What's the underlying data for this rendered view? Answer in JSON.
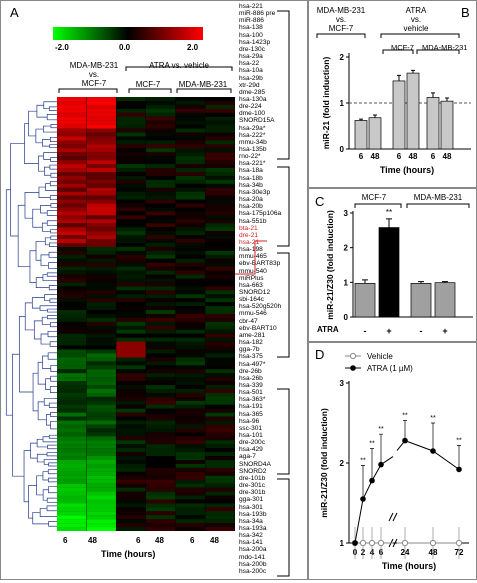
{
  "panelA": {
    "label": "A",
    "scale": {
      "min_label": "-2.0",
      "mid_label": "0.0",
      "max_label": "2.0",
      "min": -2.0,
      "max": 2.0
    },
    "group1": {
      "line1": "MDA-MB-231",
      "line2": "vs.",
      "line3": "MCF-7"
    },
    "group2": {
      "title": "ATRA vs. vehicle",
      "sub1": "MCF-7",
      "sub2": "MDA-MB-231"
    },
    "time_ticks": [
      "6",
      "48",
      "6",
      "48",
      "6",
      "48"
    ],
    "xlabel": "Time (hours)",
    "genes": [
      "hsa-221",
      "miR-886 pre",
      "miR-886",
      "hsa-138",
      "hsa-100",
      "hsa-1423p",
      "dre-130c",
      "hsa-29a",
      "hsa-22",
      "hsa-10a",
      "hsa-29b",
      "xtr-29d",
      "dme-285",
      "hsa-130a",
      "dre-224",
      "dme-100",
      "SNORD15A",
      "hsa-29a*",
      "hsa-222*",
      "mmu-34b",
      "hsa-135b",
      "rno-22*",
      "hsa-221*",
      "hsa-18a",
      "hsa-18b",
      "hsa-34b",
      "hsa-30e3p",
      "hsa-20a",
      "hsa-20b",
      "hsa-175p106a",
      "hsa-551b",
      "bta-21",
      "dre-21",
      "hsa-21",
      "hsa-198",
      "mmu-465",
      "ebv-BART83p",
      "mmu-540",
      "miRPlus",
      "hsa-663",
      "SNORD12",
      "sbi-164c",
      "hsa-520g520h",
      "mmu-546",
      "cbr-47",
      "ebv-BART10",
      "ame-281",
      "hsa-182",
      "gga-7b",
      "hsa-375",
      "hsa-497*",
      "dre-26b",
      "hsa-26b",
      "hsa-339",
      "hsa-501",
      "hsa-363*",
      "hsa-191",
      "hsa-365",
      "hsa-96",
      "ssc-301",
      "hsa-101",
      "dre-200c",
      "hsa-429",
      "aga-7",
      "SNORD4A",
      "SNORD2",
      "dre-101b",
      "dre-301c",
      "dre-301b",
      "gga-301",
      "hsa-301",
      "hsa-193b",
      "hsa-34a",
      "hsa-193a",
      "hsa-342",
      "hsa-141",
      "hsa-200a",
      "mdo-141",
      "hsa-200b",
      "hsa-200c"
    ],
    "highlight_genes": [
      "bta-21",
      "dre-21",
      "hsa-21"
    ],
    "highlight_color": "#d42020"
  },
  "panelB": {
    "label": "B",
    "group1": {
      "line1": "MDA-MB-231",
      "line2": "vs.",
      "line3": "MCF-7"
    },
    "group2": {
      "line1": "ATRA",
      "line2": "vs.",
      "line3": "vehicle"
    },
    "sub1": "MCF-7",
    "sub2": "MDA-MB-231"
  },
  "panelC": {
    "label": "C",
    "group1": "MCF-7",
    "group2": "MDA-MB-231",
    "annot": "**",
    "row_label": "ATRA",
    "signs": [
      "-",
      "+",
      "-",
      "+"
    ]
  },
  "panelD": {
    "label": "D",
    "legend": [
      "Vehicle",
      "ATRA (1 µM)"
    ],
    "annot": "**"
  },
  "chart_data": [
    {
      "type": "heatmap",
      "panel": "A",
      "columns": [
        "6",
        "48",
        "6",
        "48",
        "6",
        "48"
      ],
      "column_groups": [
        "MDA-MB-231 vs. MCF-7",
        "MDA-MB-231 vs. MCF-7",
        "MCF-7",
        "MCF-7",
        "MDA-MB-231",
        "MDA-MB-231"
      ],
      "value_range": [
        -2.0,
        2.0
      ],
      "xlabel": "Time (hours)"
    },
    {
      "type": "bar",
      "panel": "B",
      "categories": [
        "6",
        "48",
        "6",
        "48",
        "6",
        "48"
      ],
      "values": [
        0.62,
        0.68,
        1.48,
        1.65,
        1.12,
        1.04
      ],
      "errors": [
        0.03,
        0.06,
        0.12,
        0.06,
        0.1,
        0.07
      ],
      "ylabel": "miR-21 (fold induction)",
      "xlabel": "Time (hours)",
      "ylim": [
        0,
        2
      ],
      "yticks": [
        "0",
        "1",
        "2"
      ],
      "reference_line": 1
    },
    {
      "type": "bar",
      "panel": "C",
      "categories": [
        "-",
        "+",
        "-",
        "+"
      ],
      "values": [
        0.97,
        2.58,
        0.97,
        0.99
      ],
      "errors": [
        0.1,
        0.25,
        0.05,
        0.03
      ],
      "fill": [
        "#a0a0a0",
        "#000000",
        "#a0a0a0",
        "#a0a0a0"
      ],
      "ylabel": "miR-21/Z30 (fold induction)",
      "ylim": [
        0,
        3
      ],
      "yticks": [
        "0",
        "1",
        "2",
        "3"
      ]
    },
    {
      "type": "line",
      "panel": "D",
      "x": [
        0,
        2,
        4,
        6,
        24,
        48,
        72
      ],
      "x_tick_labels": [
        "0",
        "2",
        "4",
        "6",
        "24",
        "48",
        "72"
      ],
      "series": [
        {
          "name": "Vehicle",
          "values": [
            1,
            1,
            1,
            1,
            1,
            1,
            1
          ],
          "errors": [
            0.05,
            0.05,
            0.05,
            0.05,
            0.05,
            0.05,
            0.05
          ],
          "color": "#888888"
        },
        {
          "name": "ATRA (1 µM)",
          "values": [
            1,
            1.55,
            1.78,
            1.98,
            2.28,
            2.15,
            1.92
          ],
          "errors": [
            0.05,
            0.42,
            0.4,
            0.38,
            0.25,
            0.35,
            0.3
          ],
          "color": "#000000"
        }
      ],
      "ylabel": "miR-21/Z30 (fold induction)",
      "xlabel": "Time (hours)",
      "ylim": [
        1,
        3
      ],
      "yticks": [
        "1",
        "2",
        "3"
      ]
    }
  ]
}
